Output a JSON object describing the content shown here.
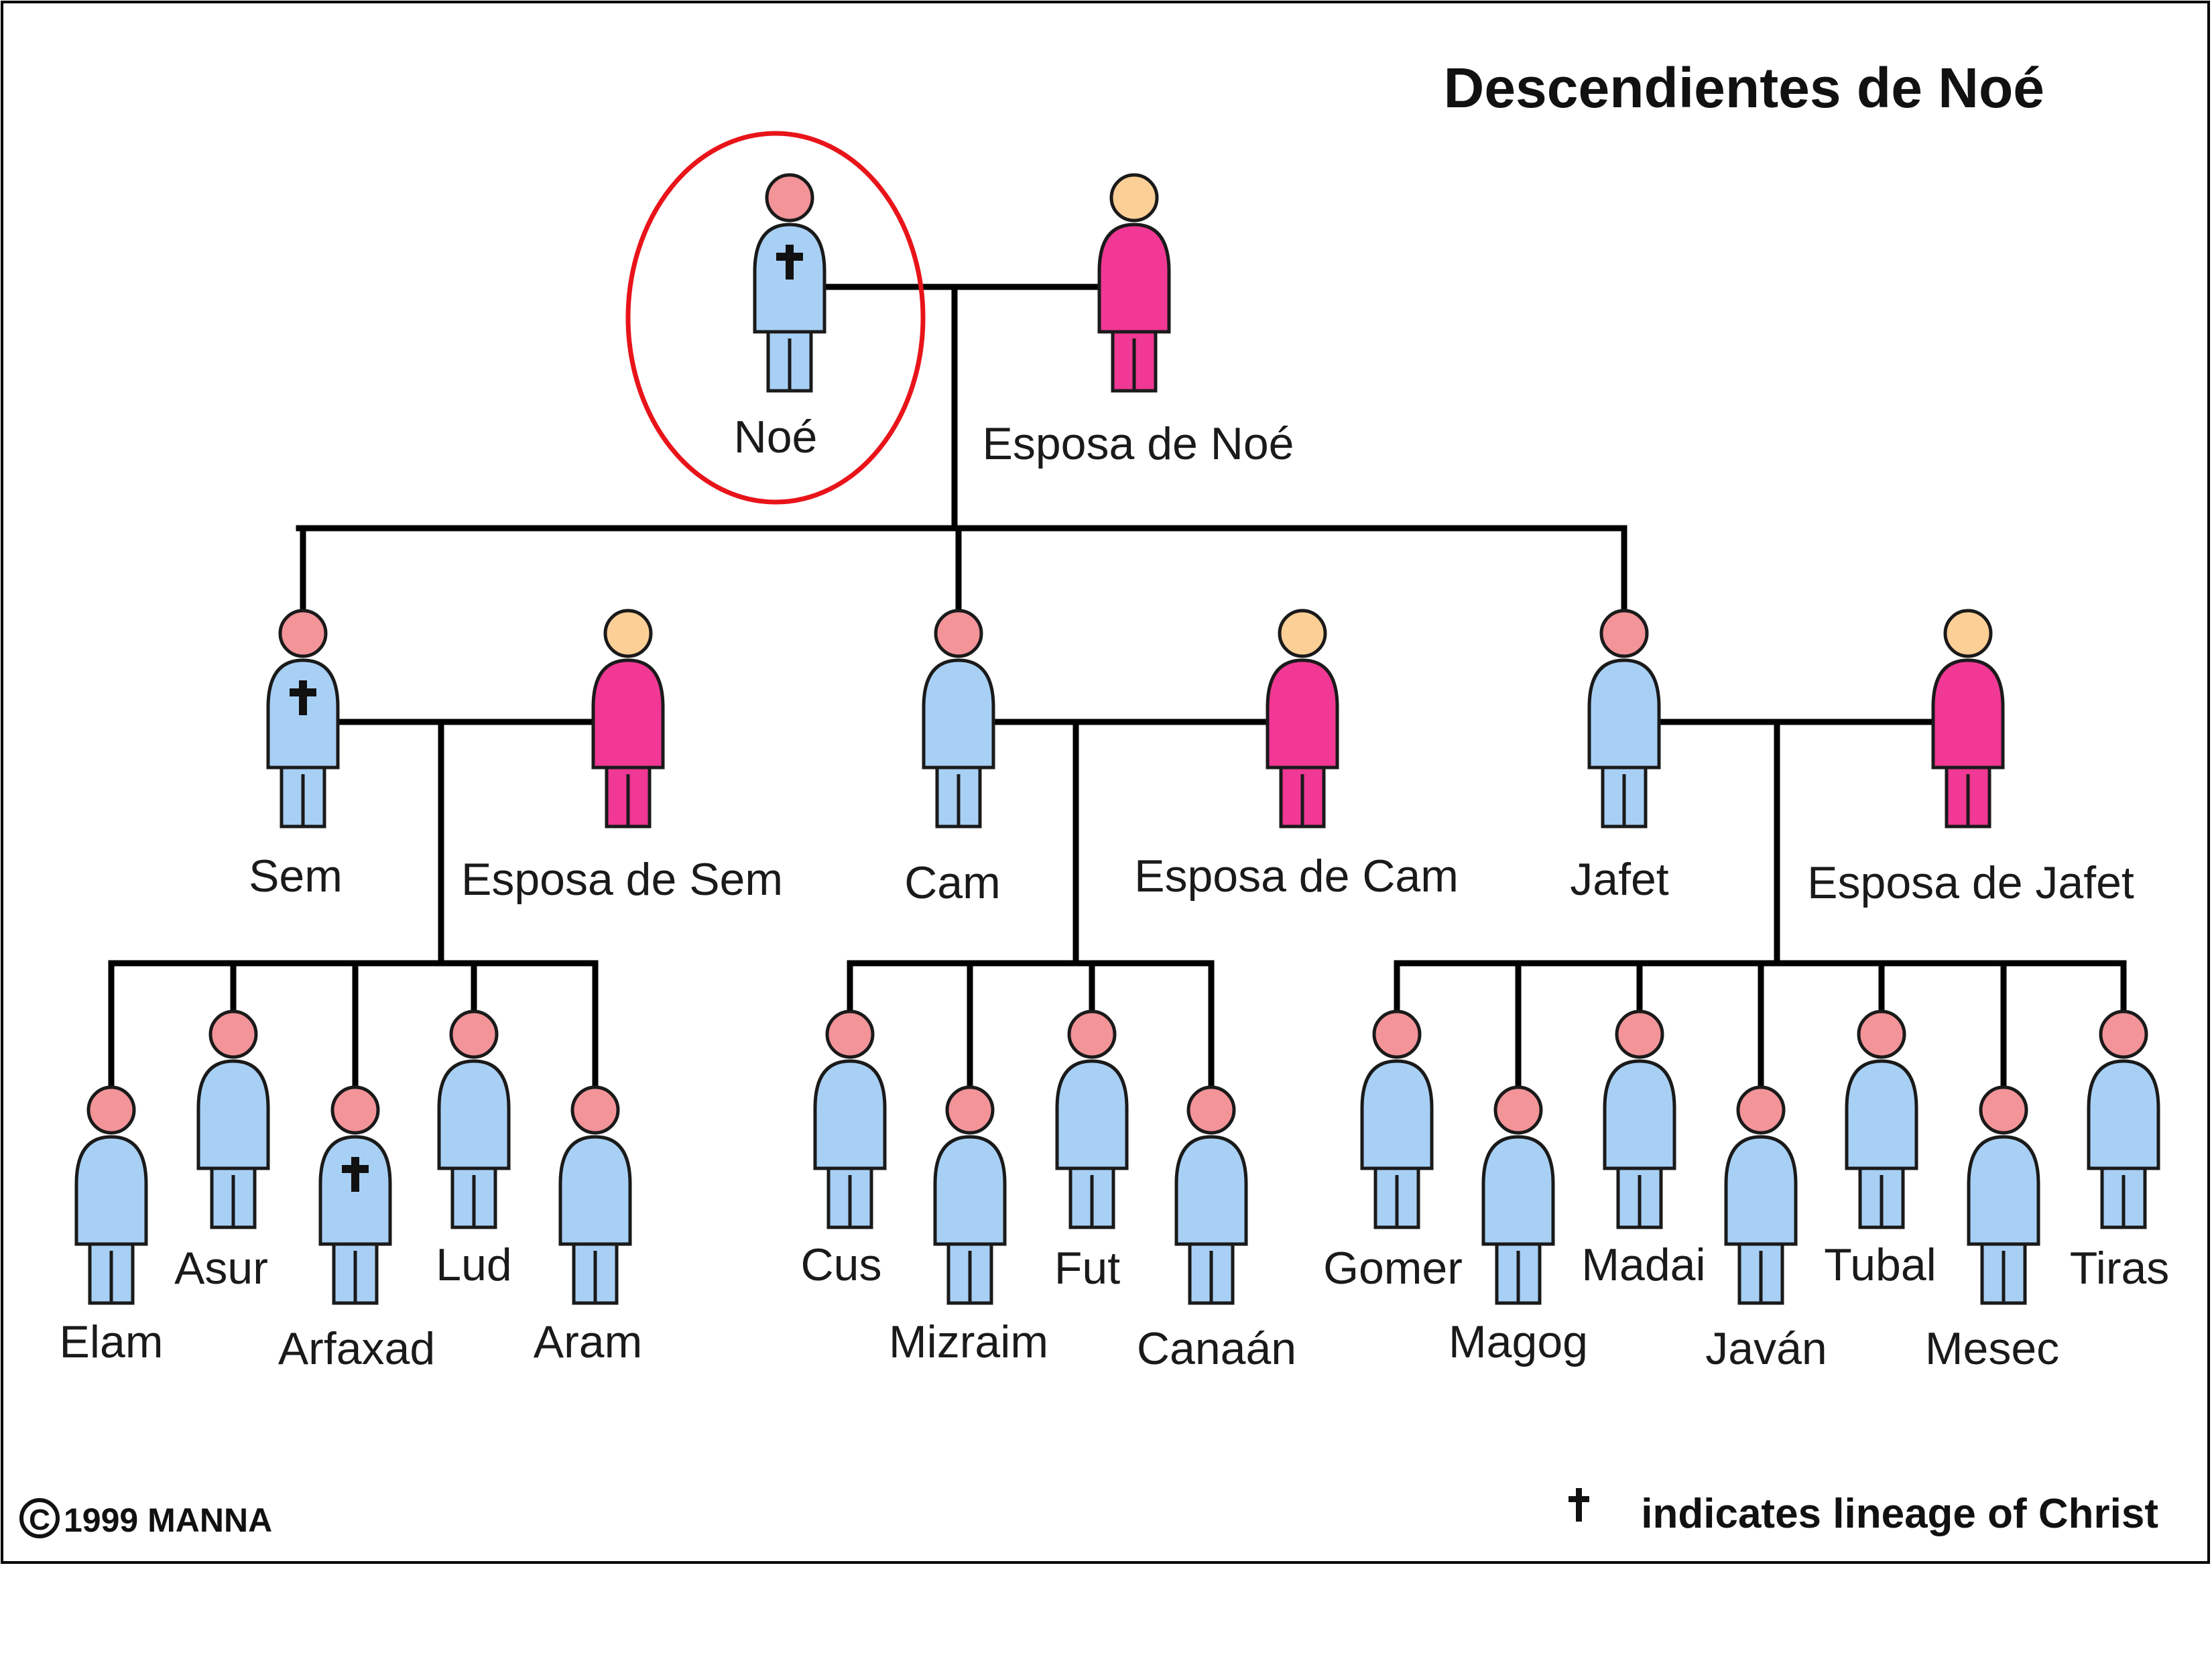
{
  "title": "Descendientes de Noé",
  "colors": {
    "male_body": "#a8d0f5",
    "male_head": "#f39499",
    "female_body": "#f03894",
    "female_head": "#fccf96",
    "line": "#000000",
    "highlight_circle": "#e8141a"
  },
  "generations": {
    "gen1": [
      {
        "name": "Noé",
        "sex": "male",
        "lineage": true,
        "highlighted": true
      },
      {
        "name": "Esposa de Noé",
        "sex": "female"
      }
    ],
    "gen2": [
      {
        "name": "Sem",
        "sex": "male",
        "lineage": true
      },
      {
        "name": "Esposa de Sem",
        "sex": "female"
      },
      {
        "name": "Cam",
        "sex": "male"
      },
      {
        "name": "Esposa de Cam",
        "sex": "female"
      },
      {
        "name": "Jafet",
        "sex": "male"
      },
      {
        "name": "Esposa de Jafet",
        "sex": "female"
      }
    ],
    "gen3": {
      "sons_of_sem": [
        "Elam",
        "Asur",
        "Arfaxad",
        "Lud",
        "Aram"
      ],
      "sons_of_cam": [
        "Cus",
        "Mizraim",
        "Fut",
        "Canaán"
      ],
      "sons_of_jafet": [
        "Gomer",
        "Magog",
        "Madai",
        "Javán",
        "Tubal",
        "Mesec",
        "Tiras"
      ],
      "lineage": [
        "Arfaxad"
      ]
    }
  },
  "legend": {
    "symbol_icon": "cross-icon",
    "text": "indicates lineage of Christ"
  },
  "copyright": "1999 MANNA"
}
